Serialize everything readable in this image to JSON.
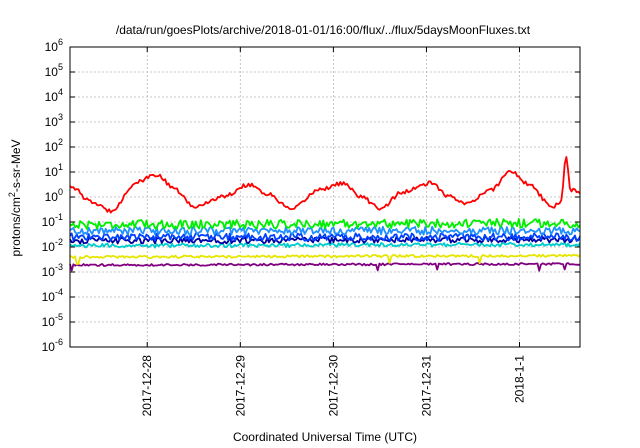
{
  "chart_data": {
    "type": "line",
    "title": "/data/run/goesPlots/archive/2018-01-01/16:00/flux/../flux/5daysMoonFluxes.txt",
    "xlabel": "Coordinated Universal Time (UTC)",
    "ylabel": "protons/cm²-s-sr-MeV",
    "ylabel_parts": {
      "base": "protons/cm",
      "sup": "2",
      "rest": "-s-sr-MeV"
    },
    "y_scale": "log",
    "ylim_exponent": [
      -6,
      6
    ],
    "y_tick_base": "10",
    "y_tick_exponents": [
      "6",
      "5",
      "4",
      "3",
      "2",
      "1",
      "0",
      "-1",
      "-2",
      "-3",
      "-4",
      "-5",
      "-6"
    ],
    "xlim_days": [
      -4.83,
      0.65
    ],
    "x_ticks": [
      {
        "day": -4,
        "label": "2017-12-28"
      },
      {
        "day": -3,
        "label": "2017-12-29"
      },
      {
        "day": -2,
        "label": "2017-12-30"
      },
      {
        "day": -1,
        "label": "2017-12-31"
      },
      {
        "day": 0,
        "label": "2018-1-1"
      }
    ],
    "grid": true,
    "legend": "none",
    "series_meta": [
      {
        "color": "#ff0000",
        "base_log": 0.3,
        "anchors": [
          [
            -4.83,
            0.45
          ],
          [
            -4.6,
            -0.2
          ],
          [
            -4.4,
            -0.55
          ],
          [
            -4.1,
            0.6
          ],
          [
            -3.9,
            0.9
          ],
          [
            -3.7,
            0.3
          ],
          [
            -3.5,
            -0.4
          ],
          [
            -3.2,
            0.0
          ],
          [
            -2.9,
            0.5
          ],
          [
            -2.7,
            0.1
          ],
          [
            -2.45,
            -0.5
          ],
          [
            -2.15,
            0.3
          ],
          [
            -1.9,
            0.55
          ],
          [
            -1.7,
            0.0
          ],
          [
            -1.5,
            -0.45
          ],
          [
            -1.25,
            0.2
          ],
          [
            -0.95,
            0.55
          ],
          [
            -0.75,
            0.0
          ],
          [
            -0.55,
            -0.25
          ],
          [
            -0.3,
            0.3
          ],
          [
            -0.1,
            1.05
          ],
          [
            0.1,
            0.5
          ],
          [
            0.35,
            -0.4
          ],
          [
            0.45,
            -0.15
          ],
          [
            0.5,
            1.7
          ],
          [
            0.55,
            0.3
          ],
          [
            0.65,
            0.2
          ]
        ],
        "noise": 0.08
      },
      {
        "color": "#00ee00",
        "anchors": [
          [
            -4.83,
            -1.1
          ],
          [
            0.65,
            -1.05
          ]
        ],
        "noise": 0.18
      },
      {
        "color": "#1e90ff",
        "anchors": [
          [
            -4.83,
            -1.35
          ],
          [
            0.65,
            -1.35
          ]
        ],
        "noise": 0.16
      },
      {
        "color": "#0040ff",
        "anchors": [
          [
            -4.83,
            -1.6
          ],
          [
            0.65,
            -1.6
          ]
        ],
        "noise": 0.15
      },
      {
        "color": "#0000a0",
        "anchors": [
          [
            -4.83,
            -1.75
          ],
          [
            0.65,
            -1.7
          ]
        ],
        "noise": 0.12
      },
      {
        "color": "#00cccc",
        "anchors": [
          [
            -4.83,
            -1.95
          ],
          [
            0.65,
            -1.9
          ]
        ],
        "noise": 0.08
      },
      {
        "color": "#e6e600",
        "anchors": [
          [
            -4.83,
            -2.4
          ],
          [
            0.65,
            -2.35
          ]
        ],
        "noise": 0.05
      },
      {
        "color": "#800080",
        "anchors": [
          [
            -4.83,
            -2.72
          ],
          [
            0.65,
            -2.68
          ]
        ],
        "noise": 0.04
      }
    ]
  }
}
